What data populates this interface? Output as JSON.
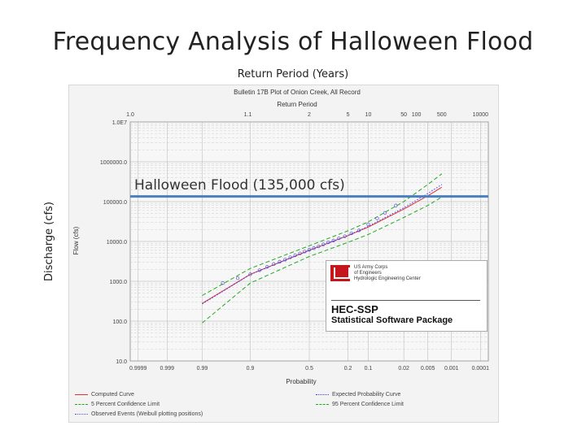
{
  "slide": {
    "title": "Frequency Analysis of Halloween Flood",
    "xlabel": "Return Period (Years)",
    "ylabel": "Discharge (cfs)",
    "annotation": "Halloween Flood (135,000 cfs)"
  },
  "chart_data": {
    "type": "line",
    "title": "Bulletin 17B Plot of Onion Creek, All Record",
    "xlabel": "Probability",
    "top_axis_label": "Return Period",
    "ylabel": "Flow (cfs)",
    "yscale": "log",
    "ylim": [
      10,
      1000000
    ],
    "y_ticks": [
      "10.0",
      "100.0",
      "1000.0",
      "10000.0",
      "100000.0",
      "1000000.0",
      "1.0E7"
    ],
    "x_ticks": [
      "0.9999",
      "0.999",
      "0.99",
      "0.9",
      "0.5",
      "0.2",
      "0.1",
      "0.02",
      "0.005",
      "0.001",
      "0.0001"
    ],
    "top_ticks": [
      "1.0",
      "1.1",
      "2",
      "5",
      "10",
      "50",
      "100",
      "500",
      "10000"
    ],
    "series": [
      {
        "name": "Computed Curve",
        "color": "#e03030",
        "style": "solid",
        "x": [
          0.99,
          0.9,
          0.5,
          0.2,
          0.1,
          0.02,
          0.005,
          0.002
        ],
        "y": [
          280,
          1500,
          6000,
          14000,
          23000,
          65000,
          140000,
          230000
        ]
      },
      {
        "name": "Expected Probability Curve",
        "color": "#3a3aff",
        "style": "dotted",
        "x": [
          0.99,
          0.9,
          0.5,
          0.2,
          0.1,
          0.02,
          0.005,
          0.002
        ],
        "y": [
          270,
          1480,
          6000,
          14200,
          24000,
          70000,
          160000,
          270000
        ]
      },
      {
        "name": "5 Percent Confidence Limit",
        "color": "#22aa22",
        "style": "dashed",
        "x": [
          0.99,
          0.9,
          0.5,
          0.2,
          0.1,
          0.02,
          0.005,
          0.002
        ],
        "y": [
          440,
          2100,
          7800,
          18500,
          31000,
          100000,
          270000,
          500000
        ]
      },
      {
        "name": "95 Percent Confidence Limit",
        "color": "#22aa22",
        "style": "dashed",
        "x": [
          0.99,
          0.9,
          0.5,
          0.2,
          0.1,
          0.02,
          0.005,
          0.002
        ],
        "y": [
          90,
          900,
          4200,
          9500,
          15000,
          40000,
          80000,
          130000
        ]
      },
      {
        "name": "Observed Events (Weibull plotting positions)",
        "color": "#5555cc",
        "style": "points",
        "x": [
          0.97,
          0.94,
          0.9,
          0.86,
          0.82,
          0.78,
          0.74,
          0.7,
          0.66,
          0.62,
          0.58,
          0.54,
          0.5,
          0.46,
          0.42,
          0.38,
          0.34,
          0.3,
          0.26,
          0.22,
          0.18,
          0.14,
          0.1,
          0.07,
          0.05,
          0.03
        ],
        "y": [
          900,
          1200,
          1500,
          1900,
          2300,
          2700,
          3100,
          3500,
          4000,
          4500,
          5000,
          5600,
          6200,
          6800,
          7500,
          8400,
          9500,
          10500,
          12000,
          13500,
          16000,
          19000,
          27000,
          38000,
          52000,
          80000
        ]
      }
    ],
    "reference_line": {
      "label": "Halloween Flood (135,000 cfs)",
      "y": 135000,
      "color": "#4a7fc0"
    },
    "legend_position": "bottom",
    "grid": true
  },
  "panel": {
    "org_line1": "US Army Corps",
    "org_line2": "of Engineers",
    "org_line3": "Hydrologic Engineering Center",
    "title": "HEC-SSP",
    "subtitle": "Statistical Software Package"
  }
}
